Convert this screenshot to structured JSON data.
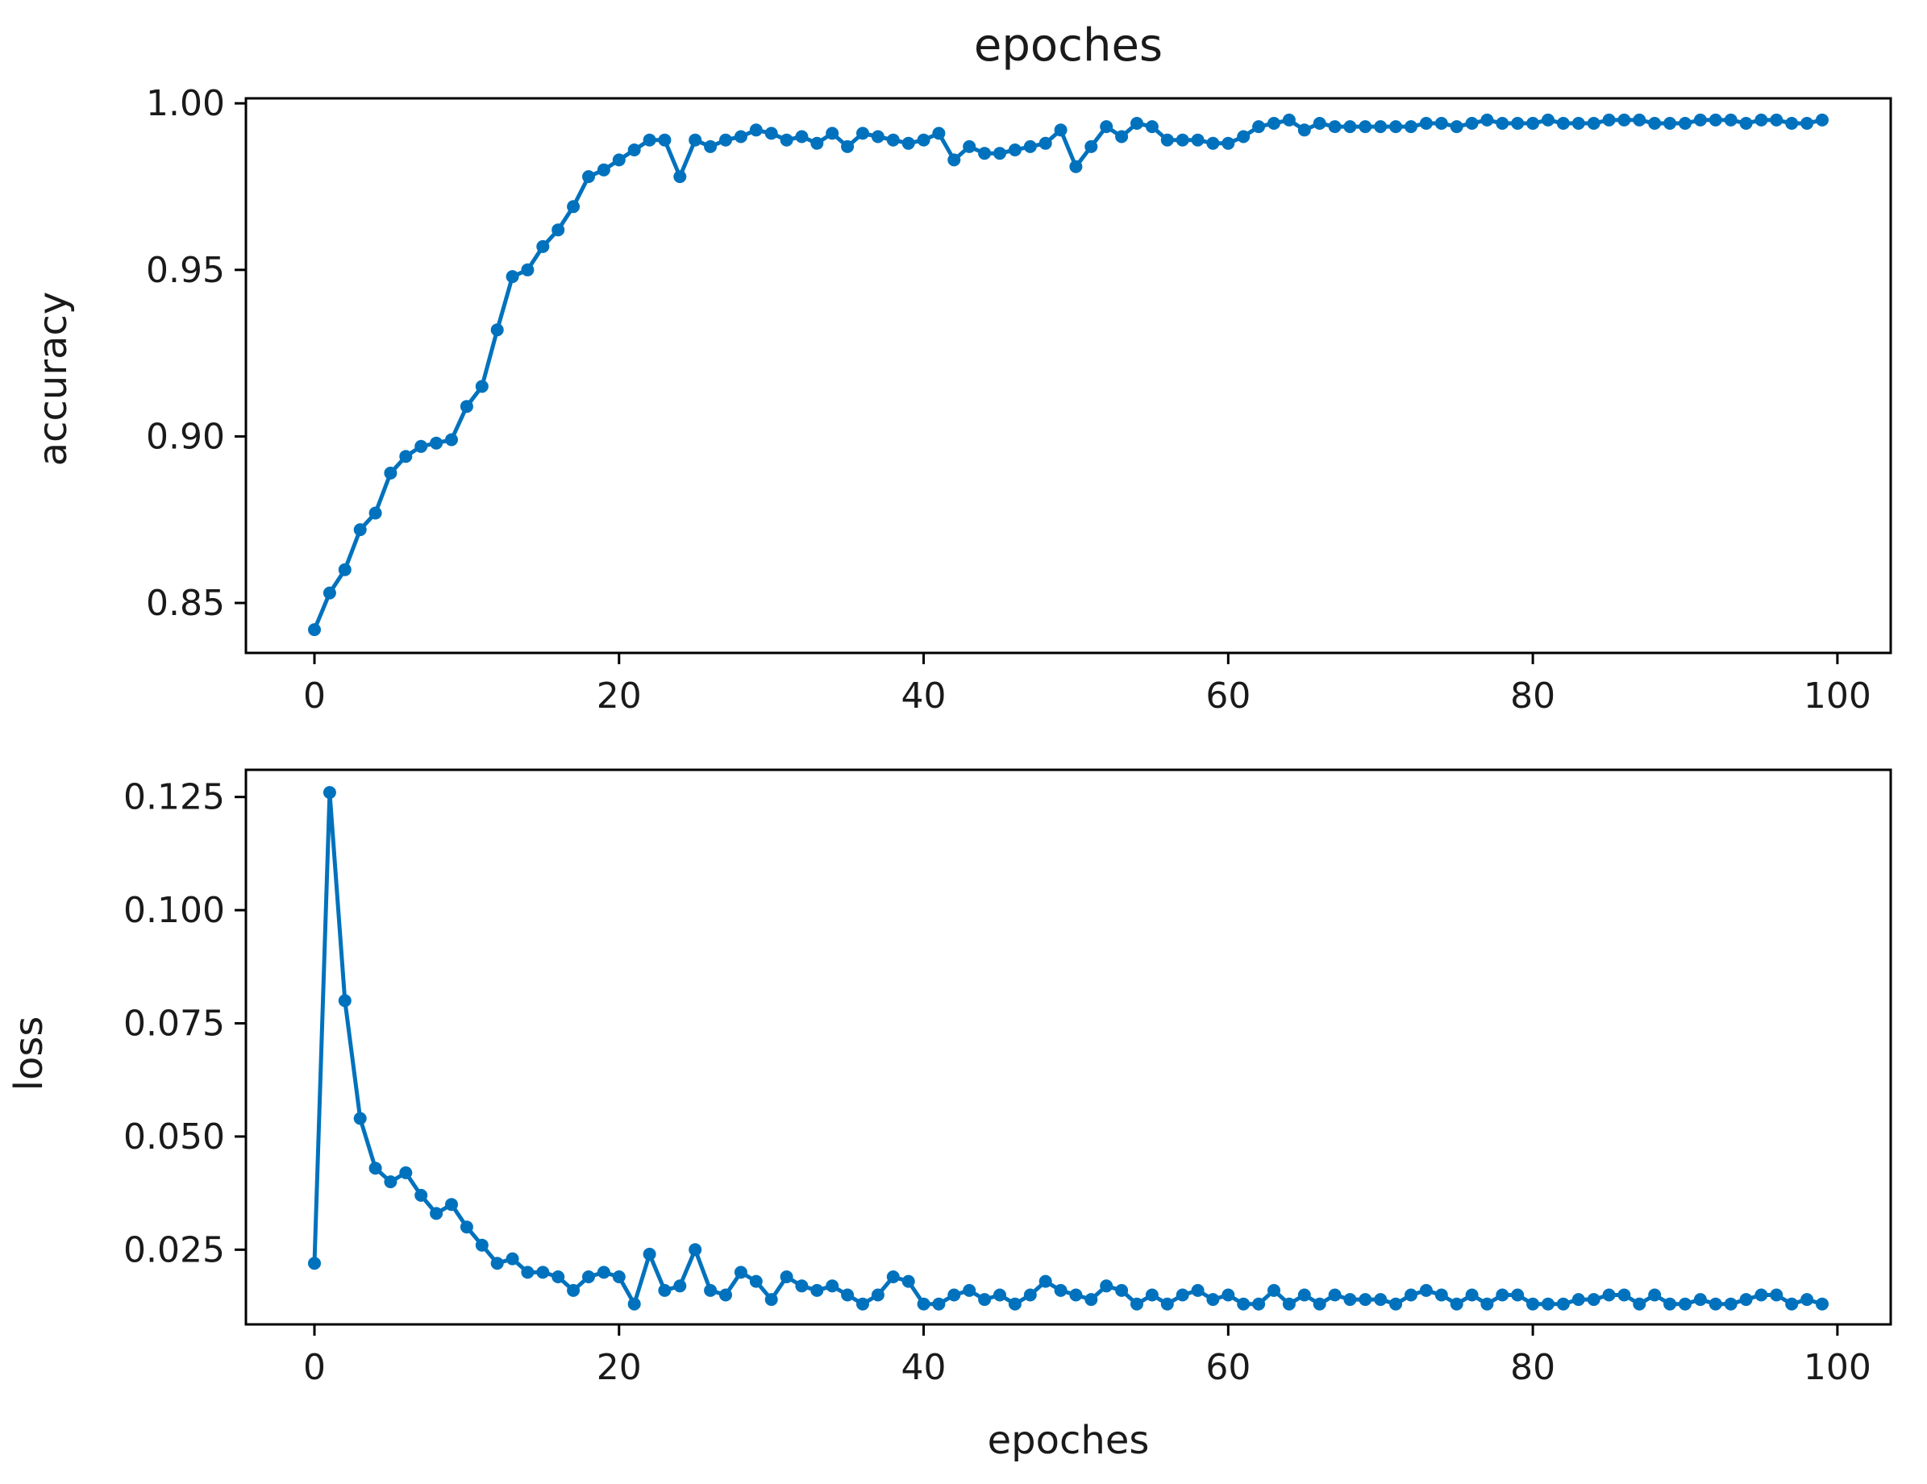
{
  "chart_data": [
    {
      "type": "line",
      "title": "epoches",
      "xlabel": "",
      "ylabel": "accuracy",
      "xlim": [
        -4.5,
        103.5
      ],
      "ylim": [
        0.835,
        1.0015
      ],
      "xticks": [
        0,
        20,
        40,
        60,
        80,
        100
      ],
      "yticks": [
        0.85,
        0.9,
        0.95,
        1.0
      ],
      "xtick_labels": [
        "0",
        "20",
        "40",
        "60",
        "80",
        "100"
      ],
      "ytick_labels": [
        "0.85",
        "0.90",
        "0.95",
        "1.00"
      ],
      "grid": false,
      "color": "#0072BD",
      "x": [
        0,
        1,
        2,
        3,
        4,
        5,
        6,
        7,
        8,
        9,
        10,
        11,
        12,
        13,
        14,
        15,
        16,
        17,
        18,
        19,
        20,
        21,
        22,
        23,
        24,
        25,
        26,
        27,
        28,
        29,
        30,
        31,
        32,
        33,
        34,
        35,
        36,
        37,
        38,
        39,
        40,
        41,
        42,
        43,
        44,
        45,
        46,
        47,
        48,
        49,
        50,
        51,
        52,
        53,
        54,
        55,
        56,
        57,
        58,
        59,
        60,
        61,
        62,
        63,
        64,
        65,
        66,
        67,
        68,
        69,
        70,
        71,
        72,
        73,
        74,
        75,
        76,
        77,
        78,
        79,
        80,
        81,
        82,
        83,
        84,
        85,
        86,
        87,
        88,
        89,
        90,
        91,
        92,
        93,
        94,
        95,
        96,
        97,
        98,
        99
      ],
      "values": [
        0.842,
        0.853,
        0.86,
        0.872,
        0.877,
        0.889,
        0.894,
        0.897,
        0.898,
        0.899,
        0.909,
        0.915,
        0.932,
        0.948,
        0.95,
        0.957,
        0.962,
        0.969,
        0.978,
        0.98,
        0.983,
        0.986,
        0.989,
        0.989,
        0.978,
        0.989,
        0.987,
        0.989,
        0.99,
        0.992,
        0.991,
        0.989,
        0.99,
        0.988,
        0.991,
        0.987,
        0.991,
        0.99,
        0.989,
        0.988,
        0.989,
        0.991,
        0.983,
        0.987,
        0.985,
        0.985,
        0.986,
        0.987,
        0.988,
        0.992,
        0.981,
        0.987,
        0.993,
        0.99,
        0.994,
        0.993,
        0.989,
        0.989,
        0.989,
        0.988,
        0.988,
        0.99,
        0.993,
        0.994,
        0.995,
        0.992,
        0.994,
        0.993,
        0.993,
        0.993,
        0.993,
        0.993,
        0.993,
        0.994,
        0.994,
        0.993,
        0.994,
        0.995,
        0.994,
        0.994,
        0.994,
        0.995,
        0.994,
        0.994,
        0.994,
        0.995,
        0.995,
        0.995,
        0.994,
        0.994,
        0.994,
        0.995,
        0.995,
        0.995,
        0.994,
        0.995,
        0.995,
        0.994,
        0.994,
        0.995
      ]
    },
    {
      "type": "line",
      "title": "",
      "xlabel": "epoches",
      "ylabel": "loss",
      "xlim": [
        -4.5,
        103.5
      ],
      "ylim": [
        0.0085,
        0.131
      ],
      "xticks": [
        0,
        20,
        40,
        60,
        80,
        100
      ],
      "yticks": [
        0.025,
        0.05,
        0.075,
        0.1,
        0.125
      ],
      "xtick_labels": [
        "0",
        "20",
        "40",
        "60",
        "80",
        "100"
      ],
      "ytick_labels": [
        "0.025",
        "0.050",
        "0.075",
        "0.100",
        "0.125"
      ],
      "grid": false,
      "color": "#0072BD",
      "x": [
        0,
        1,
        2,
        3,
        4,
        5,
        6,
        7,
        8,
        9,
        10,
        11,
        12,
        13,
        14,
        15,
        16,
        17,
        18,
        19,
        20,
        21,
        22,
        23,
        24,
        25,
        26,
        27,
        28,
        29,
        30,
        31,
        32,
        33,
        34,
        35,
        36,
        37,
        38,
        39,
        40,
        41,
        42,
        43,
        44,
        45,
        46,
        47,
        48,
        49,
        50,
        51,
        52,
        53,
        54,
        55,
        56,
        57,
        58,
        59,
        60,
        61,
        62,
        63,
        64,
        65,
        66,
        67,
        68,
        69,
        70,
        71,
        72,
        73,
        74,
        75,
        76,
        77,
        78,
        79,
        80,
        81,
        82,
        83,
        84,
        85,
        86,
        87,
        88,
        89,
        90,
        91,
        92,
        93,
        94,
        95,
        96,
        97,
        98,
        99
      ],
      "values": [
        0.022,
        0.126,
        0.08,
        0.054,
        0.043,
        0.04,
        0.042,
        0.037,
        0.033,
        0.035,
        0.03,
        0.026,
        0.022,
        0.023,
        0.02,
        0.02,
        0.019,
        0.016,
        0.019,
        0.02,
        0.019,
        0.013,
        0.024,
        0.016,
        0.017,
        0.025,
        0.016,
        0.015,
        0.02,
        0.018,
        0.014,
        0.019,
        0.017,
        0.016,
        0.017,
        0.015,
        0.013,
        0.015,
        0.019,
        0.018,
        0.013,
        0.013,
        0.015,
        0.016,
        0.014,
        0.015,
        0.013,
        0.015,
        0.018,
        0.016,
        0.015,
        0.014,
        0.017,
        0.016,
        0.013,
        0.015,
        0.013,
        0.015,
        0.016,
        0.014,
        0.015,
        0.013,
        0.013,
        0.016,
        0.013,
        0.015,
        0.013,
        0.015,
        0.014,
        0.014,
        0.014,
        0.013,
        0.015,
        0.016,
        0.015,
        0.013,
        0.015,
        0.013,
        0.015,
        0.015,
        0.013,
        0.013,
        0.013,
        0.014,
        0.014,
        0.015,
        0.015,
        0.013,
        0.015,
        0.013,
        0.013,
        0.014,
        0.013,
        0.013,
        0.014,
        0.015,
        0.015,
        0.013,
        0.014,
        0.013
      ]
    }
  ]
}
